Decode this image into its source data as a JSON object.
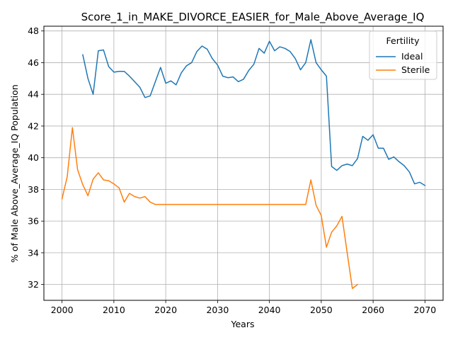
{
  "chart_data": {
    "type": "line",
    "title": "Score_1_in_MAKE_DIVORCE_EASIER_for_Male_Above_Average_IQ",
    "xlabel": "Years",
    "ylabel": "% of Male Above_Average_IQ Population",
    "xlim": [
      1996.5,
      2073.5
    ],
    "ylim": [
      31,
      48.3
    ],
    "xticks": [
      2000,
      2010,
      2020,
      2030,
      2040,
      2050,
      2060,
      2070
    ],
    "yticks": [
      32,
      34,
      36,
      38,
      40,
      42,
      44,
      46,
      48
    ],
    "grid": true,
    "legend": {
      "title": "Fertility",
      "placement": "top-right"
    },
    "colors": {
      "Ideal": "#1f77b4",
      "Sterile": "#ff7f0e"
    },
    "series": [
      {
        "name": "Ideal",
        "x": [
          2004,
          2005,
          2006,
          2007,
          2008,
          2009,
          2010,
          2011,
          2012,
          2013,
          2014,
          2015,
          2016,
          2017,
          2018,
          2019,
          2020,
          2021,
          2022,
          2023,
          2024,
          2025,
          2026,
          2027,
          2028,
          2029,
          2030,
          2031,
          2032,
          2033,
          2034,
          2035,
          2036,
          2037,
          2038,
          2039,
          2040,
          2041,
          2042,
          2043,
          2044,
          2045,
          2046,
          2047,
          2048,
          2049,
          2050,
          2051,
          2052,
          2053,
          2054,
          2055,
          2056,
          2057,
          2058,
          2059,
          2060,
          2061,
          2062,
          2063,
          2064,
          2065,
          2066,
          2067,
          2068,
          2069,
          2070
        ],
        "values": [
          46.5,
          45.0,
          44.0,
          46.75,
          46.8,
          45.75,
          45.4,
          45.45,
          45.45,
          45.15,
          44.8,
          44.45,
          43.8,
          43.9,
          44.8,
          45.7,
          44.7,
          44.85,
          44.6,
          45.35,
          45.8,
          46.0,
          46.7,
          47.05,
          46.85,
          46.25,
          45.85,
          45.15,
          45.05,
          45.1,
          44.8,
          44.95,
          45.5,
          45.9,
          46.9,
          46.6,
          47.35,
          46.75,
          47.0,
          46.9,
          46.7,
          46.25,
          45.55,
          46.0,
          47.45,
          46.0,
          45.55,
          45.15,
          39.45,
          39.2,
          39.5,
          39.6,
          39.5,
          39.95,
          41.35,
          41.1,
          41.45,
          40.6,
          40.6,
          39.9,
          40.05,
          39.75,
          39.5,
          39.1,
          38.35,
          38.45,
          38.25
        ]
      },
      {
        "name": "Sterile",
        "x": [
          2000,
          2001,
          2002,
          2003,
          2004,
          2005,
          2006,
          2007,
          2008,
          2009,
          2010,
          2011,
          2012,
          2013,
          2014,
          2015,
          2016,
          2017,
          2018,
          2019,
          2020,
          2021,
          2022,
          2023,
          2024,
          2025,
          2026,
          2027,
          2028,
          2029,
          2030,
          2031,
          2032,
          2033,
          2034,
          2035,
          2036,
          2037,
          2038,
          2039,
          2040,
          2041,
          2042,
          2043,
          2044,
          2045,
          2046,
          2047,
          2048,
          2049,
          2050,
          2051,
          2052,
          2053,
          2054,
          2055,
          2056,
          2057
        ],
        "values": [
          37.4,
          38.8,
          41.9,
          39.25,
          38.3,
          37.6,
          38.65,
          39.05,
          38.6,
          38.55,
          38.35,
          38.1,
          37.2,
          37.75,
          37.55,
          37.45,
          37.55,
          37.2,
          37.05,
          37.05,
          37.05,
          37.05,
          37.05,
          37.05,
          37.05,
          37.05,
          37.05,
          37.05,
          37.05,
          37.05,
          37.05,
          37.05,
          37.05,
          37.05,
          37.05,
          37.05,
          37.05,
          37.05,
          37.05,
          37.05,
          37.05,
          37.05,
          37.05,
          37.05,
          37.05,
          37.05,
          37.05,
          37.05,
          38.6,
          37.0,
          36.35,
          34.35,
          35.3,
          35.7,
          36.3,
          34.0,
          31.75,
          32.0
        ]
      }
    ]
  }
}
